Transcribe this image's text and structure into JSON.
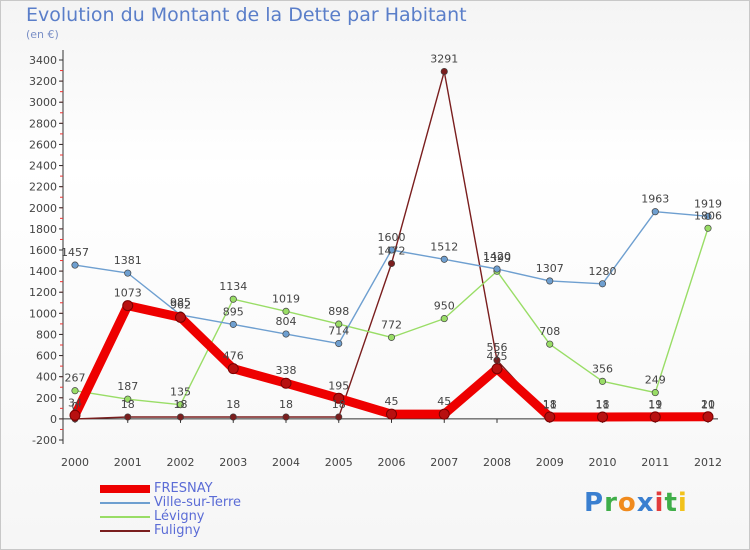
{
  "header": {
    "title": "Evolution du Montant de la Dette par Habitant",
    "unit": "(en €)"
  },
  "logo": {
    "text": "Proxiti"
  },
  "chart_data": {
    "type": "line",
    "title": "Evolution du Montant de la Dette par Habitant",
    "subtitle": "(en €)",
    "categories": [
      "2000",
      "2001",
      "2002",
      "2003",
      "2004",
      "2005",
      "2006",
      "2007",
      "2008",
      "2009",
      "2010",
      "2011",
      "2012"
    ],
    "ylim": [
      -200,
      3400
    ],
    "yticks": [
      -200,
      0,
      200,
      400,
      600,
      800,
      1000,
      1200,
      1400,
      1600,
      1800,
      2000,
      2200,
      2400,
      2600,
      2800,
      3000,
      3200,
      3400
    ],
    "grid": false,
    "legend_position": "bottom-left",
    "series": [
      {
        "name": "FRESNAY",
        "color": "#ee0000",
        "values": [
          34,
          1073,
          962,
          476,
          338,
          195,
          45,
          45,
          475,
          18,
          18,
          19,
          20
        ]
      },
      {
        "name": "Ville-sur-Terre",
        "color": "#6e9fd0",
        "values": [
          1457,
          1381,
          985,
          895,
          804,
          714,
          1600,
          1512,
          1420,
          1307,
          1280,
          1963,
          1919
        ]
      },
      {
        "name": "Lévigny",
        "color": "#99dd66",
        "values": [
          267,
          187,
          135,
          1134,
          1019,
          898,
          772,
          950,
          1399,
          708,
          356,
          249,
          1806
        ]
      },
      {
        "name": "Fuligny",
        "color": "#7a1e1e",
        "values": [
          0,
          18,
          18,
          18,
          18,
          18,
          1472,
          3291,
          556,
          11,
          11,
          11,
          11
        ]
      }
    ]
  }
}
